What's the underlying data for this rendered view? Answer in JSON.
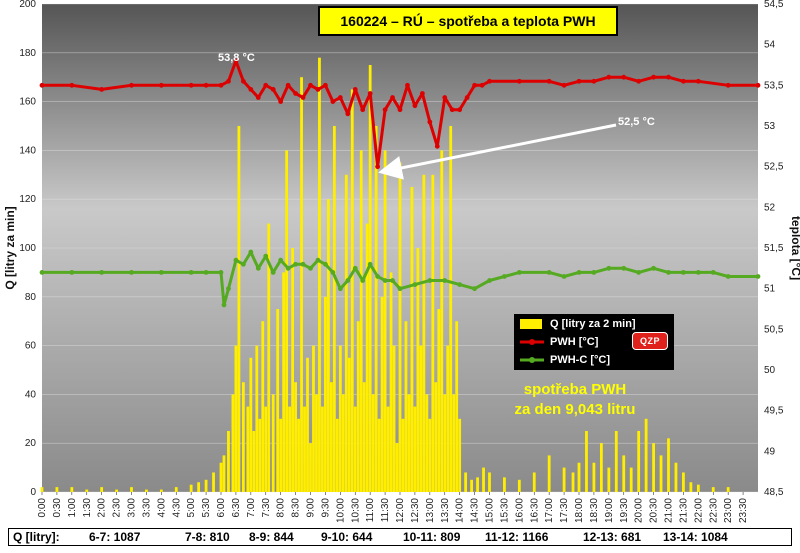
{
  "title": "160224 – RÚ – spotřeba a teplota PWH",
  "chart_data": {
    "type": "bar+line",
    "title": "160224 – RÚ – spotřeba a teplota PWH",
    "ylabel_left": "Q [litry za min]",
    "ylabel_right": "teplota [°C]",
    "ylim_left": [
      0,
      200
    ],
    "ylim_right": [
      48.5,
      54.5
    ],
    "yticks_left": [
      "0",
      "20",
      "40",
      "60",
      "80",
      "100",
      "120",
      "140",
      "160",
      "180",
      "200"
    ],
    "yticks_right": [
      "48,5",
      "49",
      "49,5",
      "50",
      "50,5",
      "51",
      "51,5",
      "52",
      "52,5",
      "53",
      "53,5",
      "54",
      "54,5"
    ],
    "x_ticks": [
      "0:00",
      "0:30",
      "1:00",
      "1:30",
      "2:00",
      "2:30",
      "3:00",
      "3:30",
      "4:00",
      "4:30",
      "5:00",
      "5:30",
      "6:00",
      "6:30",
      "7:00",
      "7:30",
      "8:00",
      "8:30",
      "9:00",
      "9:30",
      "10:00",
      "10:30",
      "11:00",
      "11:30",
      "12:00",
      "12:30",
      "13:00",
      "13:30",
      "14:00",
      "14:30",
      "15:00",
      "15:30",
      "16:00",
      "16:30",
      "17:00",
      "17:30",
      "18:00",
      "18:30",
      "19:00",
      "19:30",
      "20:00",
      "20:30",
      "21:00",
      "21:30",
      "22:00",
      "22:30",
      "23:00",
      "23:30"
    ],
    "legend": [
      "Q [litry za 2 min]",
      "PWH  [°C]",
      "PWH-C [°C]"
    ],
    "legend_position": "right-middle",
    "colors": {
      "q": "#ffee00",
      "pwh": "#dd0000",
      "pwhc": "#55aa22",
      "bg_top": "#555555",
      "bg_mid": "#bdbdbd",
      "bg_bot": "#8a8a8a"
    },
    "q_series": {
      "name": "Q [litry za 2 min]",
      "times_h": [
        0,
        0.5,
        1,
        1.5,
        2,
        2.5,
        3,
        3.5,
        4,
        4.5,
        5,
        5.25,
        5.5,
        5.75,
        6,
        6.1,
        6.25,
        6.4,
        6.5,
        6.6,
        6.75,
        6.9,
        7,
        7.1,
        7.2,
        7.3,
        7.4,
        7.5,
        7.6,
        7.75,
        7.9,
        8,
        8.1,
        8.2,
        8.3,
        8.4,
        8.5,
        8.6,
        8.7,
        8.8,
        8.9,
        9,
        9.1,
        9.2,
        9.3,
        9.4,
        9.5,
        9.6,
        9.7,
        9.8,
        9.9,
        10,
        10.1,
        10.2,
        10.3,
        10.4,
        10.5,
        10.6,
        10.7,
        10.8,
        10.9,
        11,
        11.1,
        11.2,
        11.3,
        11.4,
        11.5,
        11.6,
        11.7,
        11.8,
        11.9,
        12,
        12.1,
        12.2,
        12.3,
        12.4,
        12.5,
        12.6,
        12.7,
        12.8,
        12.9,
        13,
        13.1,
        13.2,
        13.3,
        13.4,
        13.5,
        13.6,
        13.7,
        13.8,
        13.9,
        14,
        14.2,
        14.4,
        14.6,
        14.8,
        15,
        15.5,
        16,
        16.5,
        17,
        17.5,
        17.8,
        18,
        18.25,
        18.5,
        18.75,
        19,
        19.25,
        19.5,
        19.75,
        20,
        20.25,
        20.5,
        20.75,
        21,
        21.25,
        21.5,
        21.75,
        22,
        22.5,
        23,
        23.5
      ],
      "values": [
        2,
        2,
        2,
        1,
        2,
        1,
        2,
        1,
        1,
        2,
        3,
        4,
        5,
        8,
        12,
        15,
        25,
        40,
        60,
        150,
        45,
        35,
        55,
        25,
        60,
        30,
        70,
        35,
        110,
        40,
        75,
        30,
        90,
        140,
        35,
        100,
        45,
        30,
        170,
        35,
        55,
        20,
        60,
        40,
        178,
        35,
        80,
        120,
        45,
        150,
        30,
        60,
        40,
        130,
        55,
        165,
        35,
        70,
        140,
        45,
        110,
        175,
        40,
        150,
        30,
        80,
        140,
        35,
        90,
        60,
        20,
        135,
        30,
        70,
        40,
        125,
        35,
        100,
        60,
        130,
        40,
        30,
        130,
        45,
        75,
        140,
        40,
        60,
        150,
        40,
        70,
        30,
        8,
        5,
        6,
        10,
        8,
        6,
        5,
        8,
        15,
        10,
        8,
        12,
        25,
        12,
        20,
        10,
        25,
        15,
        10,
        25,
        30,
        20,
        15,
        22,
        12,
        8,
        4,
        3,
        2,
        2
      ]
    },
    "pwh_series": {
      "name": "PWH  [°C]",
      "times_h": [
        0,
        1,
        2,
        3,
        4,
        5,
        5.5,
        6,
        6.25,
        6.5,
        6.75,
        7,
        7.25,
        7.5,
        7.75,
        8,
        8.25,
        8.5,
        8.75,
        9,
        9.25,
        9.5,
        9.75,
        10,
        10.25,
        10.5,
        10.75,
        11,
        11.25,
        11.5,
        11.75,
        12,
        12.25,
        12.5,
        12.75,
        13,
        13.25,
        13.5,
        13.75,
        14,
        14.25,
        14.5,
        14.75,
        15,
        16,
        17,
        17.5,
        18,
        18.5,
        19,
        19.5,
        20,
        20.5,
        21,
        21.5,
        22,
        23,
        24
      ],
      "values": [
        53.5,
        53.5,
        53.45,
        53.5,
        53.5,
        53.5,
        53.5,
        53.5,
        53.55,
        53.8,
        53.55,
        53.45,
        53.35,
        53.5,
        53.45,
        53.3,
        53.5,
        53.4,
        53.35,
        53.5,
        53.45,
        53.5,
        53.3,
        53.35,
        53.15,
        53.45,
        53.2,
        53.4,
        52.5,
        53.2,
        53.35,
        53.2,
        53.5,
        53.25,
        53.4,
        53.05,
        52.75,
        53.35,
        53.2,
        53.2,
        53.35,
        53.5,
        53.5,
        53.55,
        53.55,
        53.55,
        53.5,
        53.55,
        53.55,
        53.6,
        53.6,
        53.55,
        53.6,
        53.6,
        53.55,
        53.55,
        53.5,
        53.5
      ]
    },
    "pwhc_series": {
      "name": "PWH-C [°C]",
      "times_h": [
        0,
        1,
        2,
        3,
        4,
        5,
        5.5,
        6,
        6.1,
        6.25,
        6.5,
        6.75,
        7,
        7.25,
        7.5,
        7.75,
        8,
        8.25,
        8.5,
        8.75,
        9,
        9.25,
        9.5,
        9.75,
        10,
        10.25,
        10.5,
        10.75,
        11,
        11.25,
        11.5,
        11.75,
        12,
        12.5,
        13,
        13.5,
        14,
        14.5,
        15,
        15.5,
        16,
        17,
        17.5,
        18,
        18.5,
        19,
        19.5,
        20,
        20.5,
        21,
        21.5,
        22,
        22.5,
        23,
        24
      ],
      "values": [
        51.2,
        51.2,
        51.2,
        51.2,
        51.2,
        51.2,
        51.2,
        51.2,
        50.8,
        51.0,
        51.35,
        51.3,
        51.45,
        51.25,
        51.4,
        51.2,
        51.35,
        51.25,
        51.3,
        51.3,
        51.25,
        51.35,
        51.3,
        51.2,
        51.0,
        51.1,
        51.25,
        51.1,
        51.3,
        51.15,
        51.1,
        51.1,
        51.0,
        51.05,
        51.1,
        51.1,
        51.05,
        51.0,
        51.1,
        51.15,
        51.2,
        51.2,
        51.15,
        51.2,
        51.2,
        51.25,
        51.25,
        51.2,
        51.25,
        51.2,
        51.2,
        51.2,
        51.2,
        51.15,
        51.15
      ]
    },
    "annotations": [
      "53,8 °C",
      "52,5 °C",
      "spotřeba PWH",
      "za den 9,043 litru"
    ]
  },
  "legend": {
    "items": [
      "Q [litry za 2 min]",
      "PWH  [°C]",
      "PWH-C [°C]"
    ],
    "logo": "QZP"
  },
  "annotations": {
    "max_temp": "53,8 °C",
    "min_temp": "52,5 °C",
    "total_line1": "spotřeba PWH",
    "total_line2": "za den 9,043 litru"
  },
  "summary": {
    "label": "Q [litry]:",
    "items": [
      "6-7: 1087",
      "7-8: 810",
      "8-9: 844",
      "9-10: 644",
      "10-11: 809",
      "11-12: 1166",
      "12-13: 681",
      "13-14: 1084"
    ]
  }
}
